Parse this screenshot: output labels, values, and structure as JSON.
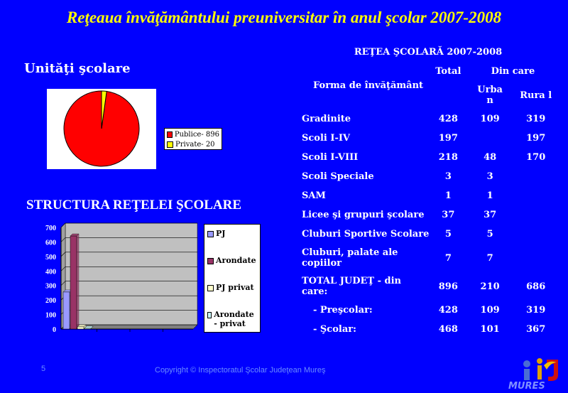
{
  "title": "Reţeaua  învăţământului preuniversitar în anul şcolar 2007-2008",
  "pie": {
    "title": "Unităţi şcolare",
    "legend": [
      "Publice- 896",
      "Private- 20"
    ]
  },
  "structure": {
    "title": "STRUCTURA REŢELEI ŞCOLARE",
    "legend": [
      "PJ",
      "Arondate",
      "PJ privat",
      "Arondate - privat"
    ]
  },
  "colors": {
    "background": "#0000ff",
    "title": "#ffff00",
    "pie_public": "#ff0000",
    "pie_private": "#ffff00",
    "pj": "#9999ff",
    "arondate": "#993366",
    "pj_privat": "#ffffcc",
    "arondate_privat": "#ccffff"
  },
  "chart_data": [
    {
      "type": "pie",
      "title": "Unităţi şcolare",
      "categories": [
        "Publice- 896",
        "Private- 20"
      ],
      "values": [
        896,
        20
      ]
    },
    {
      "type": "bar",
      "title": "STRUCTURA REŢELEI ŞCOLARE",
      "ylim": [
        0,
        700
      ],
      "yticks": [
        "0",
        "100",
        "200",
        "300",
        "400",
        "500",
        "600",
        "700"
      ],
      "grid": true,
      "legend": "right",
      "categories": [
        ""
      ],
      "series": [
        {
          "name": "PJ",
          "values": [
            255
          ]
        },
        {
          "name": "Arondate",
          "values": [
            641
          ]
        },
        {
          "name": "PJ privat",
          "values": [
            15
          ]
        },
        {
          "name": "Arondate - privat",
          "values": [
            5
          ]
        }
      ]
    }
  ],
  "network": {
    "caption": "REŢEA ŞCOLARĂ 2007-2008",
    "headers": {
      "form": "Forma de învăţământ",
      "total": "Total",
      "of_which": "Din care",
      "urban": "Urba n",
      "rural": "Rura l"
    },
    "rows": [
      {
        "label": "Gradinite",
        "total": "428",
        "urban": "109",
        "rural": "319"
      },
      {
        "label": "Scoli I-IV",
        "total": "197",
        "urban": "",
        "rural": "197"
      },
      {
        "label": "Scoli I-VIII",
        "total": "218",
        "urban": "48",
        "rural": "170"
      },
      {
        "label": "Scoli Speciale",
        "total": "3",
        "urban": "3",
        "rural": ""
      },
      {
        "label": "SAM",
        "total": "1",
        "urban": "1",
        "rural": ""
      },
      {
        "label": "Licee şi grupuri şcolare",
        "total": "37",
        "urban": "37",
        "rural": ""
      },
      {
        "label": "Cluburi Sportive Scolare",
        "total": "5",
        "urban": "5",
        "rural": ""
      },
      {
        "label": "Cluburi, palate ale copiilor",
        "total": "7",
        "urban": "7",
        "rural": ""
      },
      {
        "label": "TOTAL JUDEŢ - din care:",
        "total": "896",
        "urban": "210",
        "rural": "686"
      },
      {
        "label": "- Preşcolar:",
        "total": "428",
        "urban": "109",
        "rural": "319"
      },
      {
        "label": "- Şcolar:",
        "total": "468",
        "urban": "101",
        "rural": "367"
      }
    ]
  },
  "footer": {
    "page": "5",
    "copyright": "Copyright © Inspectoratul Şcolar Judeţean Mureş"
  }
}
